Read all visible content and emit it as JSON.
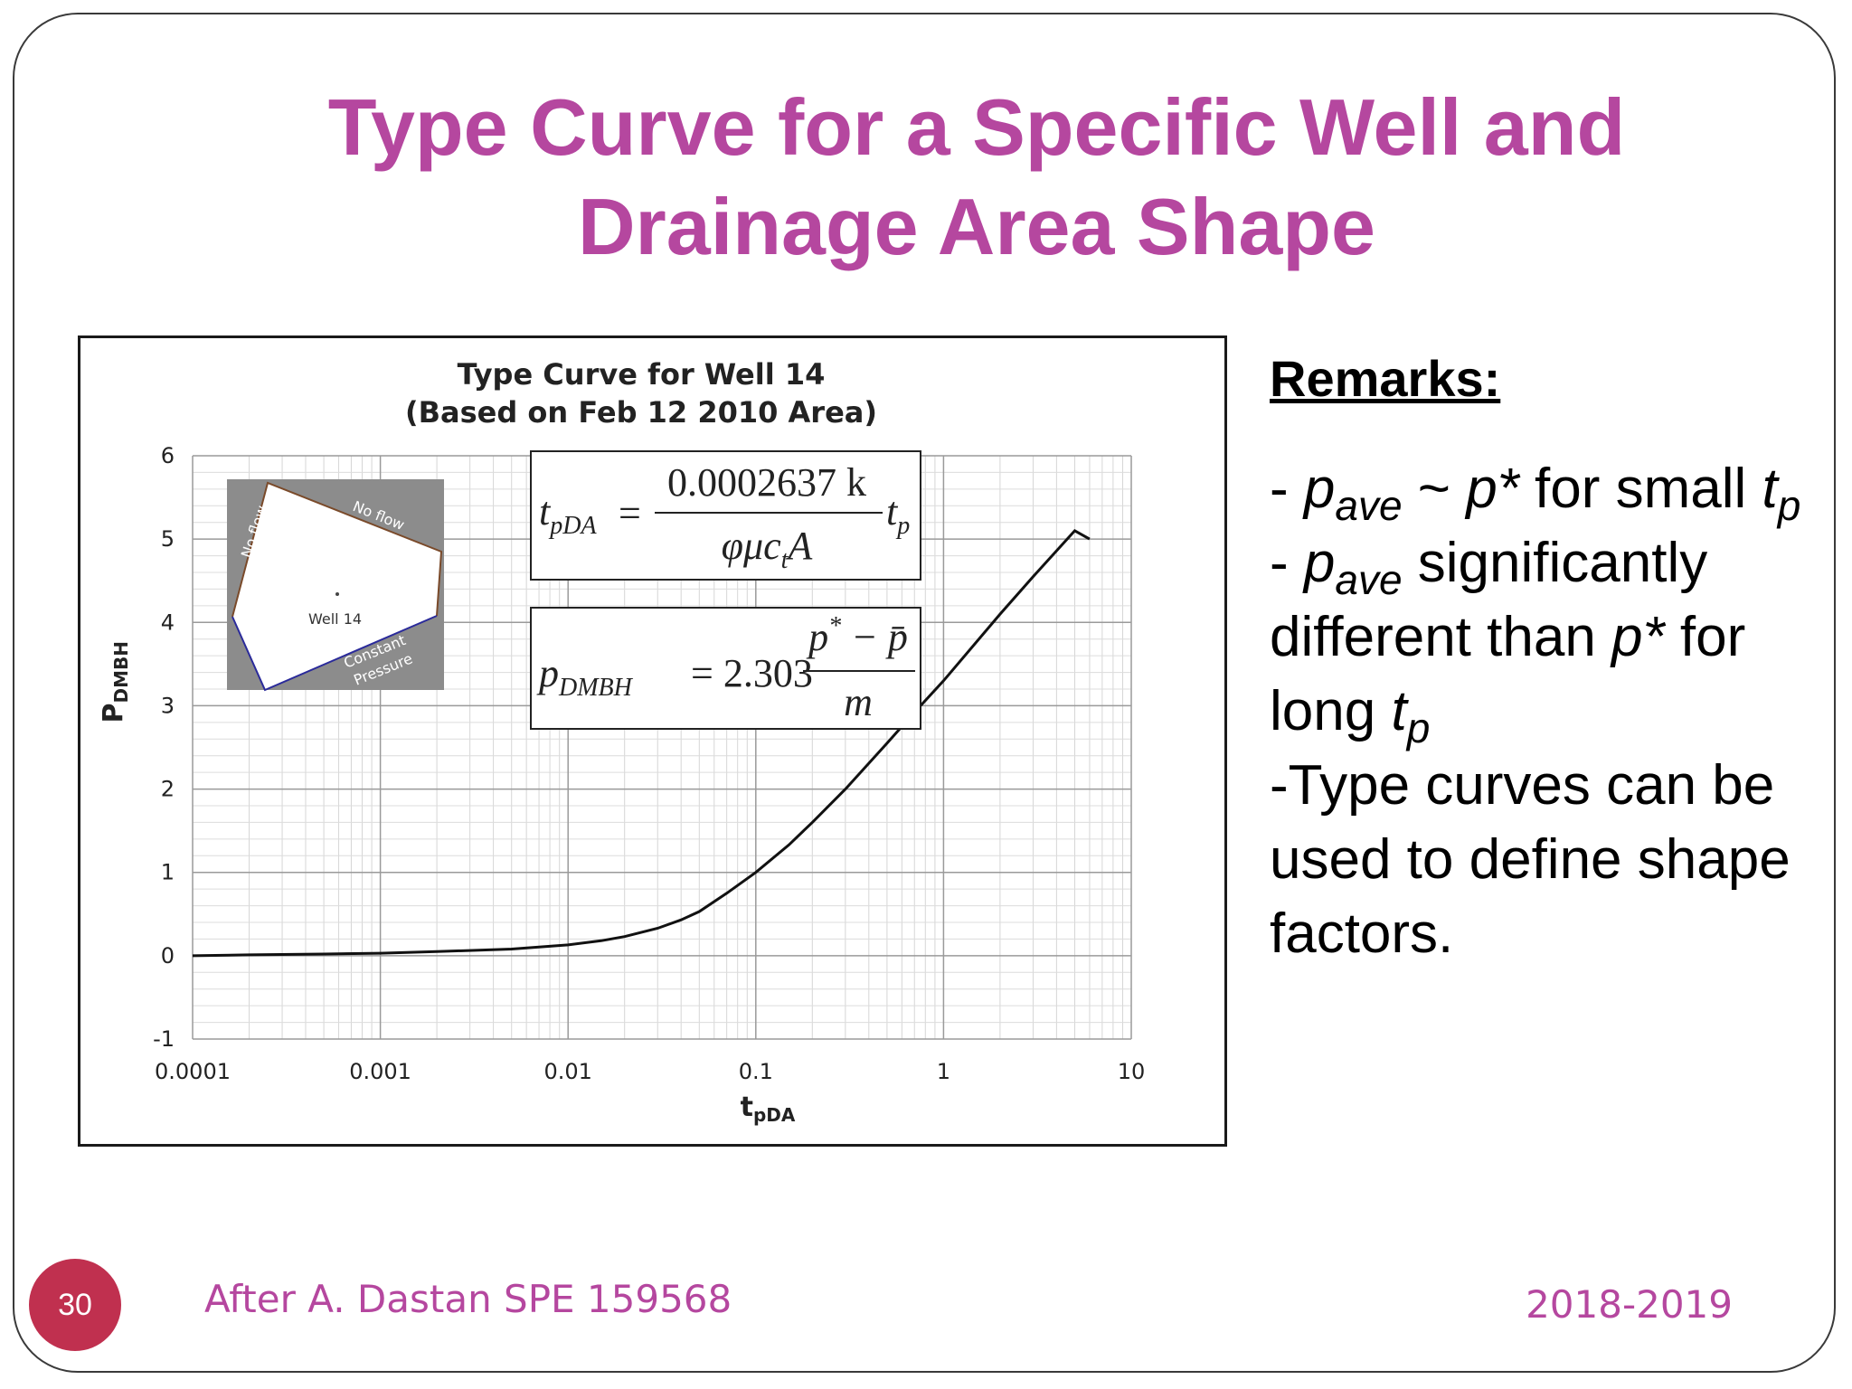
{
  "slide": {
    "title_line1": "Type Curve for a Specific Well and",
    "title_line2": "Drainage Area Shape",
    "page_number": "30",
    "source": "After A. Dastan SPE 159568",
    "date": "2018-2019",
    "accent_color": "#b5479f",
    "badge_color": "#c0304f"
  },
  "remarks": {
    "heading": "Remarks:",
    "items": [
      {
        "pre": "- ",
        "var": "p",
        "sub": "ave",
        "mid": " ~ ",
        "var2": "p*",
        "post": " for small ",
        "var3": "t",
        "sub3": "p"
      },
      {
        "pre": "- ",
        "var": "p",
        "sub": "ave",
        "post": " significantly different than ",
        "var2": "p*",
        "post2": " for long ",
        "var3": "t",
        "sub3": "p"
      },
      {
        "text": "-Type curves can be used to define shape factors."
      }
    ]
  },
  "formulas": {
    "tpda": {
      "lhs": "t",
      "lhs_sub": "pDA",
      "eq": "=",
      "numerator": "0.0002637 k",
      "denominator": "φμc",
      "den_sub": "t",
      "den_tail": "A",
      "rhs": "t",
      "rhs_sub": "p"
    },
    "pdmbh": {
      "lhs": "p",
      "lhs_sub": "DMBH",
      "eq": "= 2.303",
      "numerator_a": "p",
      "numerator_sup": "*",
      "numerator_b": " − p̄",
      "denominator": "m"
    }
  },
  "inset": {
    "label_no_flow_top": "No flow",
    "label_no_flow_left": "No flow",
    "label_well": "Well 14",
    "label_constant": "Constant",
    "label_pressure": "Pressure",
    "background_color": "#8c8c8c"
  },
  "chart_data": {
    "type": "line",
    "title": "Type Curve for Well 14",
    "subtitle": "(Based on Feb 12 2010 Area)",
    "xlabel": "t",
    "xlabel_sub": "pDA",
    "ylabel": "P",
    "ylabel_sub": "DMBH",
    "x_scale": "log",
    "xlim": [
      0.0001,
      10
    ],
    "ylim": [
      -1,
      6
    ],
    "x_ticks": [
      0.0001,
      0.001,
      0.01,
      0.1,
      1,
      10
    ],
    "x_tick_labels": [
      "0.0001",
      "0.001",
      "0.01",
      "0.1",
      "1",
      "10"
    ],
    "y_ticks": [
      -1,
      0,
      1,
      2,
      3,
      4,
      5,
      6
    ],
    "y_tick_labels": [
      "-1",
      "0",
      "1",
      "2",
      "3",
      "4",
      "5",
      "6"
    ],
    "grid": true,
    "series": [
      {
        "color": "#111111",
        "x": [
          0.0001,
          0.0002,
          0.0005,
          0.001,
          0.002,
          0.005,
          0.01,
          0.015,
          0.02,
          0.03,
          0.04,
          0.05,
          0.07,
          0.1,
          0.15,
          0.2,
          0.3,
          0.5,
          0.7,
          1,
          2,
          3,
          5,
          6
        ],
        "y": [
          0.0,
          0.01,
          0.02,
          0.03,
          0.05,
          0.08,
          0.13,
          0.18,
          0.23,
          0.33,
          0.43,
          0.53,
          0.75,
          1.0,
          1.33,
          1.6,
          2.0,
          2.55,
          2.92,
          3.3,
          4.1,
          4.55,
          5.1,
          5.0
        ]
      }
    ]
  }
}
